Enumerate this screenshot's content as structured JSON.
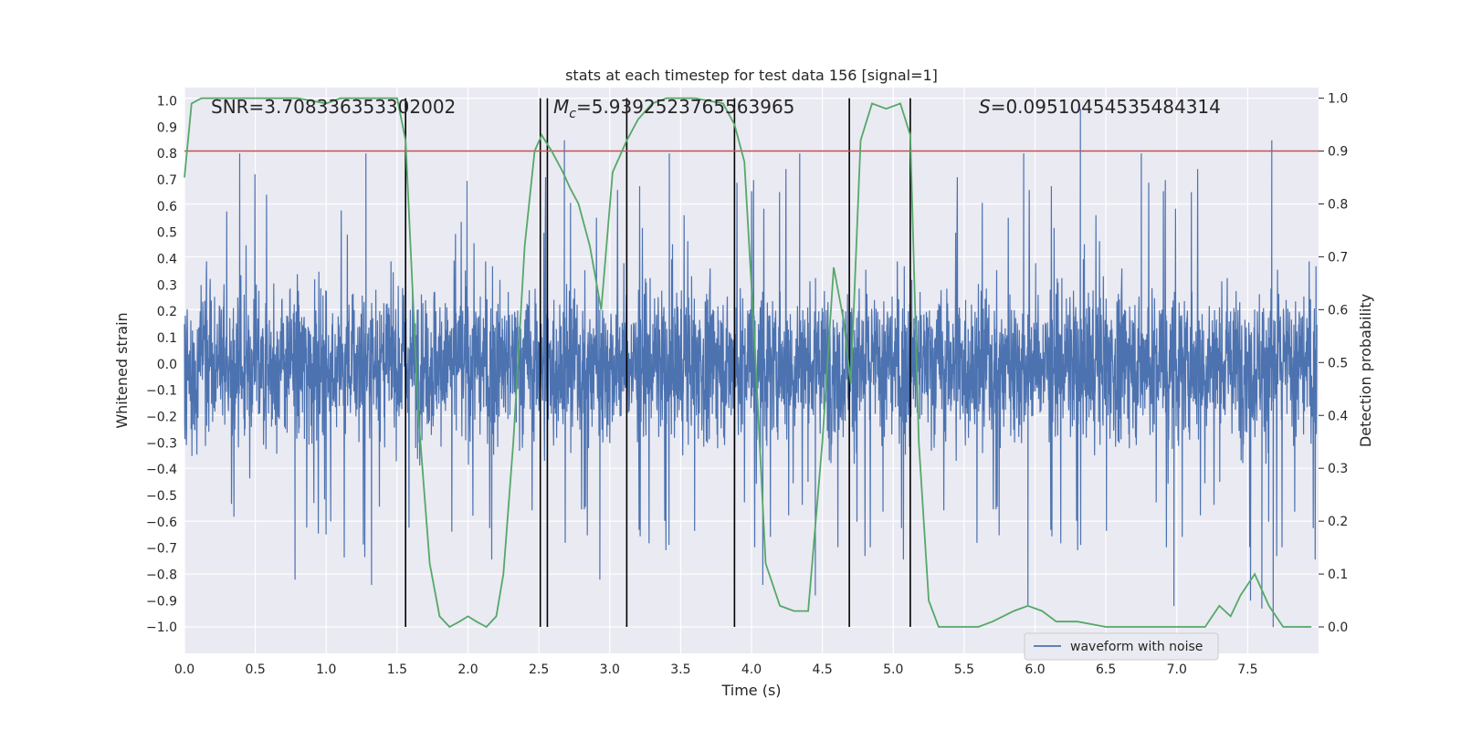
{
  "chart_data": {
    "type": "line",
    "title": "stats at each timestep for test data 156 [signal=1]",
    "xlabel": "Time (s)",
    "ylabel_left": "Whitened strain",
    "ylabel_right": "Detection probability",
    "xlim": [
      0.0,
      8.0
    ],
    "ylim_left": [
      -1.1,
      1.05
    ],
    "ylim_right": [
      -0.05,
      1.02
    ],
    "x_ticks": [
      "0.0",
      "0.5",
      "1.0",
      "1.5",
      "2.0",
      "2.5",
      "3.0",
      "3.5",
      "4.0",
      "4.5",
      "5.0",
      "5.5",
      "6.0",
      "6.5",
      "7.0",
      "7.5"
    ],
    "y_ticks_left": [
      "1.0",
      "0.9",
      "0.8",
      "0.7",
      "0.6",
      "0.5",
      "0.4",
      "0.3",
      "0.2",
      "0.1",
      "0.0",
      "−0.1",
      "−0.2",
      "−0.3",
      "−0.4",
      "−0.5",
      "−0.6",
      "−0.7",
      "−0.8",
      "−0.9",
      "−1.0"
    ],
    "y_ticks_right": [
      "1.0",
      "0.9",
      "0.8",
      "0.7",
      "0.6",
      "0.5",
      "0.4",
      "0.3",
      "0.2",
      "0.1",
      "0.0"
    ],
    "grid": true,
    "legend_position": "lower-right",
    "annotations": {
      "snr": "SNR=3.708336353302002",
      "mc_symbol": "M",
      "mc_sub": "c",
      "mc_value": "=5.9392523765563965",
      "s_symbol": "S",
      "s_value": "=0.09510454535484314"
    },
    "threshold": {
      "value": 0.9,
      "axis": "right",
      "color": "#c44e52"
    },
    "vertical_lines_x": [
      1.56,
      2.51,
      2.56,
      3.12,
      3.88,
      4.69,
      5.12
    ],
    "series": [
      {
        "name": "waveform with noise",
        "axis": "left",
        "color": "#4c72b0",
        "style": "dense noise trace",
        "amplitude_typical": [
          -0.45,
          0.5
        ],
        "peaks_high": [
          [
            0.39,
            0.8
          ],
          [
            1.28,
            0.8
          ],
          [
            2.68,
            0.85
          ],
          [
            3.42,
            0.8
          ],
          [
            4.34,
            0.8
          ],
          [
            6.32,
            0.97
          ],
          [
            7.67,
            0.85
          ],
          [
            6.75,
            0.8
          ],
          [
            5.92,
            0.8
          ]
        ],
        "peaks_low": [
          [
            0.78,
            -0.82
          ],
          [
            1.32,
            -0.84
          ],
          [
            2.93,
            -0.82
          ],
          [
            3.88,
            -0.84
          ],
          [
            4.08,
            -0.84
          ],
          [
            4.45,
            -0.88
          ],
          [
            5.95,
            -0.92
          ],
          [
            6.98,
            -0.92
          ],
          [
            7.6,
            -0.93
          ],
          [
            7.68,
            -1.0
          ],
          [
            7.52,
            -0.9
          ]
        ]
      },
      {
        "axis": "right",
        "color": "#55a868",
        "x": [
          0.0,
          0.05,
          0.12,
          0.2,
          0.4,
          0.6,
          0.8,
          1.0,
          1.1,
          1.2,
          1.4,
          1.5,
          1.56,
          1.65,
          1.73,
          1.8,
          1.87,
          1.94,
          2.0,
          2.06,
          2.13,
          2.2,
          2.25,
          2.32,
          2.4,
          2.47,
          2.52,
          2.59,
          2.67,
          2.72,
          2.78,
          2.86,
          2.94,
          3.02,
          3.12,
          3.2,
          3.3,
          3.4,
          3.6,
          3.8,
          3.88,
          3.95,
          4.02,
          4.1,
          4.2,
          4.3,
          4.4,
          4.5,
          4.58,
          4.65,
          4.7,
          4.77,
          4.85,
          4.95,
          5.05,
          5.12,
          5.18,
          5.25,
          5.32,
          5.4,
          5.6,
          5.7,
          5.85,
          5.95,
          6.05,
          6.15,
          6.3,
          6.5,
          6.8,
          7.0,
          7.2,
          7.3,
          7.38,
          7.45,
          7.55,
          7.65,
          7.75,
          7.95
        ],
        "values": [
          0.85,
          0.99,
          1.0,
          1.0,
          1.0,
          1.0,
          1.0,
          0.99,
          1.0,
          1.0,
          1.0,
          1.0,
          0.92,
          0.4,
          0.12,
          0.02,
          0.0,
          0.01,
          0.02,
          0.01,
          0.0,
          0.02,
          0.1,
          0.35,
          0.72,
          0.9,
          0.93,
          0.9,
          0.86,
          0.83,
          0.8,
          0.72,
          0.6,
          0.86,
          0.92,
          0.96,
          0.99,
          1.0,
          1.0,
          0.99,
          0.95,
          0.88,
          0.55,
          0.12,
          0.04,
          0.03,
          0.03,
          0.35,
          0.68,
          0.58,
          0.46,
          0.92,
          0.99,
          0.98,
          0.99,
          0.93,
          0.35,
          0.05,
          0.0,
          0.0,
          0.0,
          0.01,
          0.03,
          0.04,
          0.03,
          0.01,
          0.01,
          0.0,
          0.0,
          0.0,
          0.0,
          0.04,
          0.02,
          0.06,
          0.1,
          0.04,
          0.0,
          0.0
        ]
      }
    ]
  }
}
